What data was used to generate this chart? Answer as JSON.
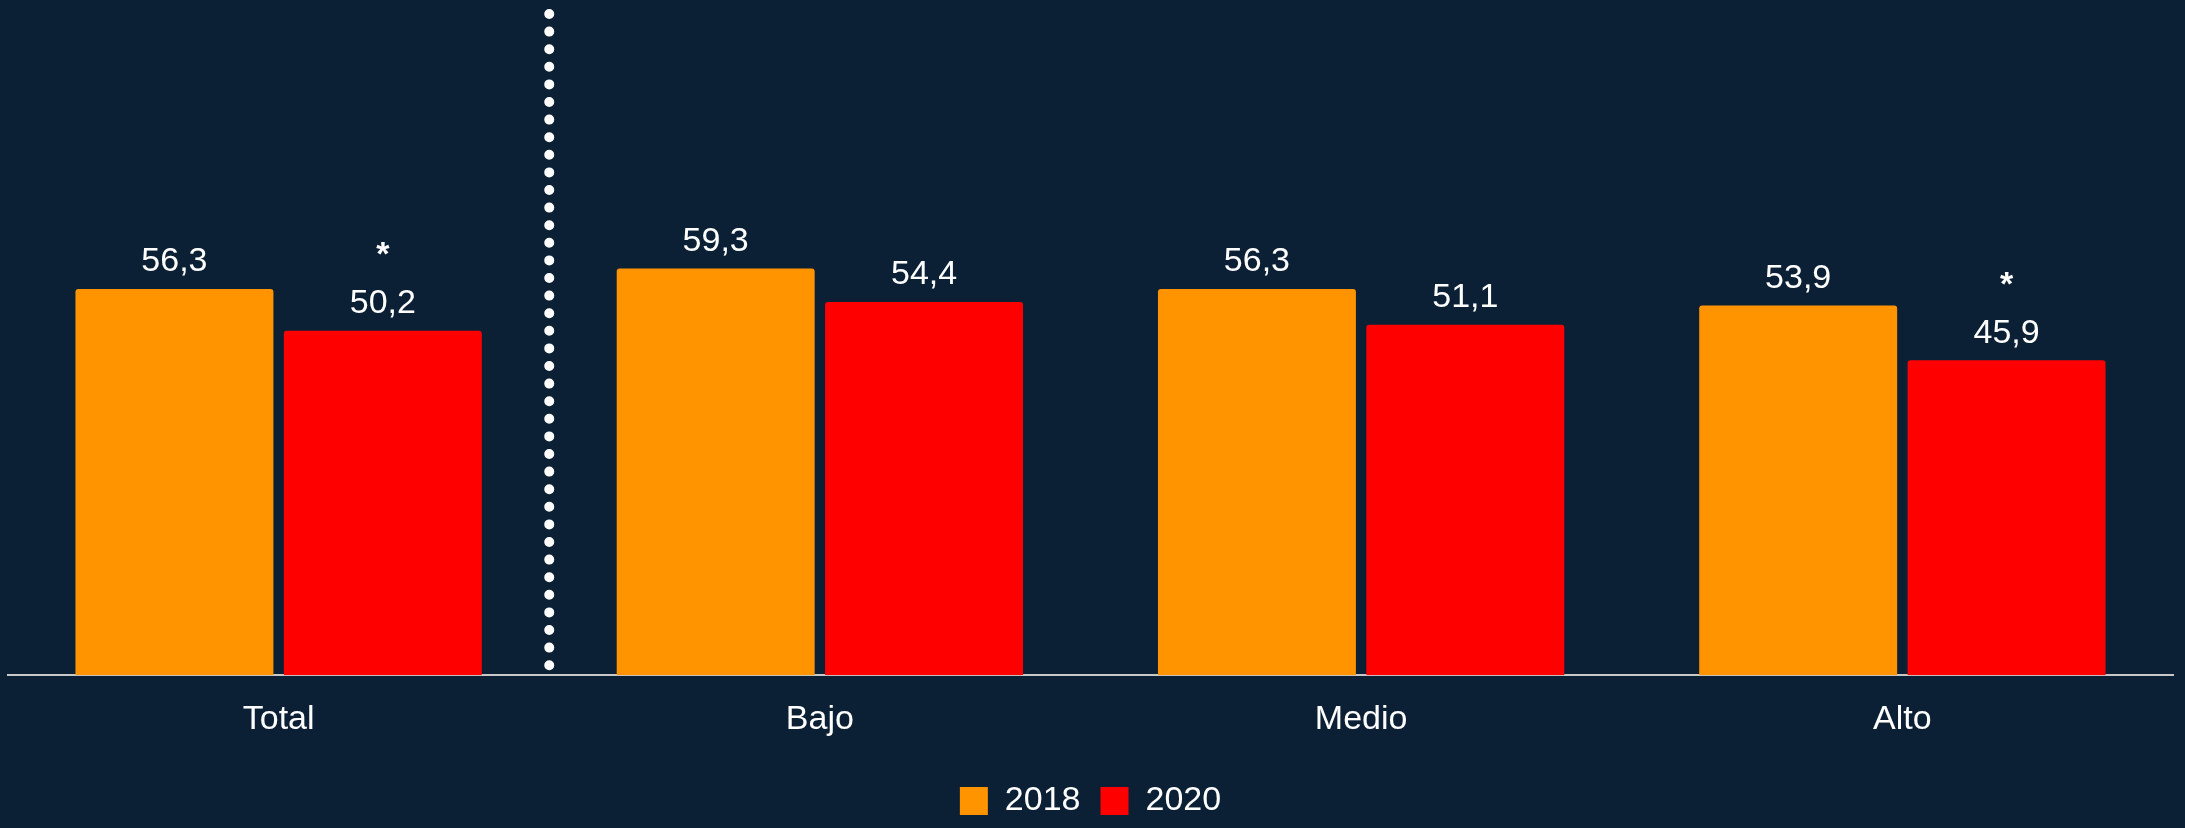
{
  "chart_data": {
    "type": "bar",
    "categories": [
      "Total",
      "Bajo",
      "Medio",
      "Alto"
    ],
    "series": [
      {
        "name": "2018",
        "color": "#ff9300",
        "values": [
          56.3,
          59.3,
          56.3,
          53.9
        ],
        "value_labels": [
          "56,3",
          "59,3",
          "56,3",
          "53,9"
        ]
      },
      {
        "name": "2020",
        "color": "#ff0000",
        "values": [
          50.2,
          54.4,
          51.1,
          45.9
        ],
        "value_labels": [
          "50,2",
          "54,4",
          "51,1",
          "45,9"
        ]
      }
    ],
    "annotations": [
      "*",
      "*"
    ],
    "grid": false,
    "legend": "bottom",
    "tick_labels": "x"
  }
}
